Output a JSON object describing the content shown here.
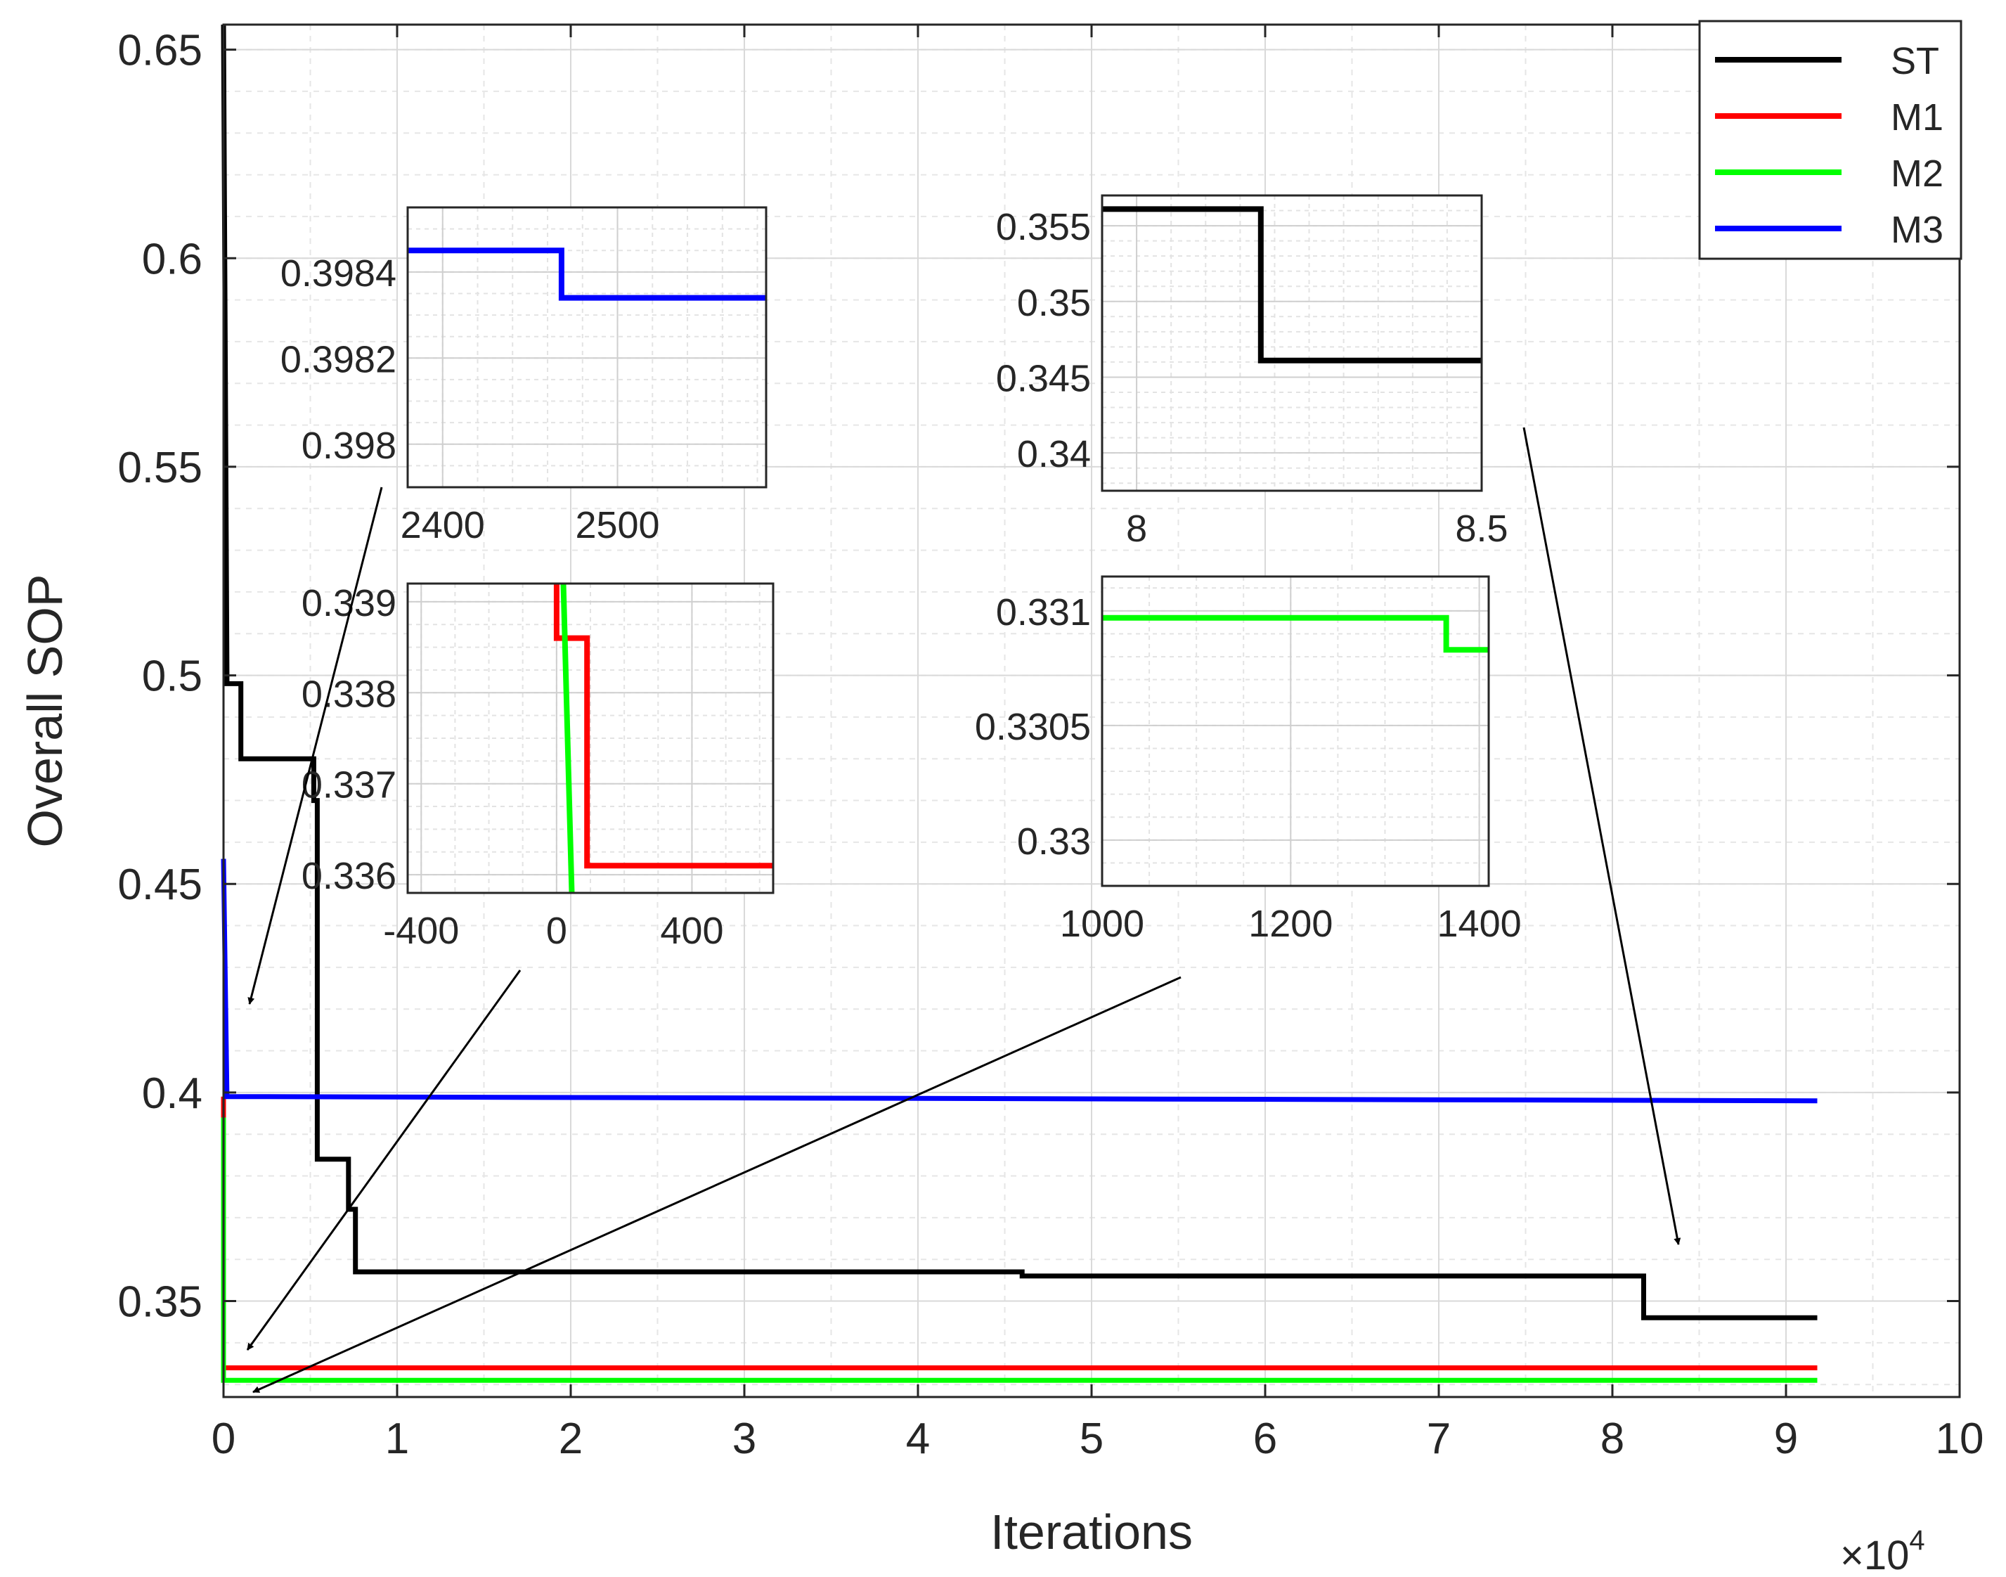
{
  "chart_data": {
    "type": "line",
    "xlabel": "Iterations",
    "ylabel": "Overall SOP",
    "x_exponent_label": "×10",
    "x_exponent_power": "4",
    "xlim": [
      0,
      10
    ],
    "ylim": [
      0.327,
      0.656
    ],
    "xticks": [
      0,
      1,
      2,
      3,
      4,
      5,
      6,
      7,
      8,
      9,
      10
    ],
    "xtick_labels": [
      "0",
      "1",
      "2",
      "3",
      "4",
      "5",
      "6",
      "7",
      "8",
      "9",
      "10"
    ],
    "yticks": [
      0.35,
      0.4,
      0.45,
      0.5,
      0.55,
      0.6,
      0.65
    ],
    "ytick_labels": [
      "0.35",
      "0.4",
      "0.45",
      "0.5",
      "0.55",
      "0.6",
      "0.65"
    ],
    "grid": true,
    "legend_position": "top-right",
    "series": [
      {
        "name": "ST",
        "color": "#000000",
        "x": [
          0,
          0.02,
          0.02,
          0.1,
          0.1,
          0.52,
          0.52,
          0.54,
          0.54,
          0.72,
          0.72,
          0.76,
          0.76,
          4.6,
          4.6,
          8.18,
          8.18,
          9.18
        ],
        "y": [
          0.656,
          0.5,
          0.498,
          0.498,
          0.48,
          0.48,
          0.47,
          0.47,
          0.384,
          0.384,
          0.372,
          0.372,
          0.357,
          0.357,
          0.356,
          0.356,
          0.346,
          0.346
        ]
      },
      {
        "name": "M1",
        "color": "#ff0000",
        "x": [
          0,
          0,
          0.02,
          9.18
        ],
        "y": [
          0.399,
          0.334,
          0.334,
          0.334
        ]
      },
      {
        "name": "M2",
        "color": "#00ff00",
        "x": [
          0,
          0,
          0.02,
          9.18
        ],
        "y": [
          0.394,
          0.331,
          0.331,
          0.331
        ]
      },
      {
        "name": "M3",
        "color": "#0000ff",
        "x": [
          0,
          0.02,
          0.25,
          9.18
        ],
        "y": [
          0.456,
          0.399,
          0.399,
          0.398
        ]
      }
    ],
    "insets": [
      {
        "xtick_labels": [
          "2400",
          "2500"
        ],
        "ytick_labels": [
          "0.3984",
          "0.3982",
          "0.398"
        ],
        "xlim": [
          2380,
          2585
        ],
        "ylim": [
          0.3979,
          0.39855
        ],
        "series": [
          {
            "color": "#0000ff",
            "x": [
              2380,
              2468,
              2468,
              2585
            ],
            "y": [
              0.39845,
              0.39845,
              0.39834,
              0.39834
            ]
          }
        ]
      },
      {
        "xtick_labels": [
          "-400",
          "0",
          "400"
        ],
        "ytick_labels": [
          "0.339",
          "0.338",
          "0.337",
          "0.336"
        ],
        "xlim": [
          -440,
          640
        ],
        "ylim": [
          0.3358,
          0.3392
        ],
        "series": [
          {
            "color": "#ff0000",
            "x": [
              0,
              0,
              60,
              60,
              90,
              90,
              640
            ],
            "y": [
              0.3392,
              0.3386,
              0.3386,
              0.3386,
              0.3386,
              0.3361,
              0.3361
            ]
          },
          {
            "color": "#00ff00",
            "x": [
              20,
              45
            ],
            "y": [
              0.3392,
              0.3358
            ]
          }
        ]
      },
      {
        "xtick_labels": [
          "8",
          "8.5"
        ],
        "ytick_labels": [
          "0.355",
          "0.35",
          "0.345",
          "0.34"
        ],
        "xlim": [
          7.95,
          8.5
        ],
        "ylim": [
          0.3375,
          0.357
        ],
        "series": [
          {
            "color": "#000000",
            "x": [
              7.95,
              8.18,
              8.18,
              8.5
            ],
            "y": [
              0.3561,
              0.3561,
              0.3461,
              0.3461
            ]
          }
        ]
      },
      {
        "xtick_labels": [
          "1000",
          "1200",
          "1400"
        ],
        "ytick_labels": [
          "0.331",
          "0.3305",
          "0.33"
        ],
        "xlim": [
          1000,
          1410
        ],
        "ylim": [
          0.3298,
          0.33115
        ],
        "series": [
          {
            "color": "#00ff00",
            "x": [
              1000,
              1365,
              1365,
              1410
            ],
            "y": [
              0.33097,
              0.33097,
              0.33083,
              0.33083
            ]
          }
        ]
      }
    ]
  }
}
